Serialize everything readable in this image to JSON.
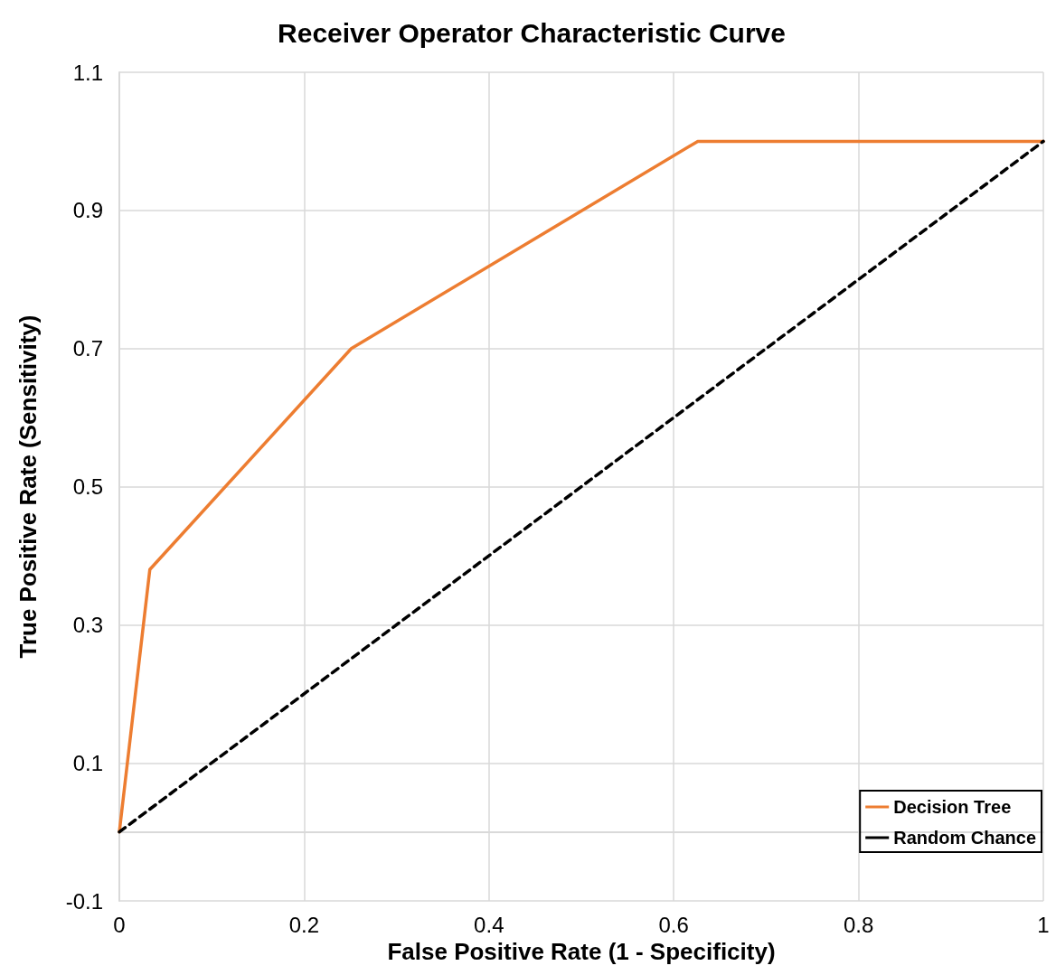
{
  "chart_data": {
    "type": "line",
    "title": "Receiver Operator Characteristic Curve",
    "xlabel": "False Positive Rate (1 - Specificity)",
    "ylabel": "True Positive Rate (Sensitivity)",
    "series": [
      {
        "name": "Decision Tree",
        "color": "#ed7d31",
        "x": [
          0,
          0.033,
          0.251,
          0.626,
          1
        ],
        "values": [
          0,
          0.38,
          0.7,
          1,
          1
        ]
      },
      {
        "name": "Random Chance",
        "color": "#000000",
        "line_style": "dashed",
        "x": [
          0,
          1
        ],
        "values": [
          0,
          1
        ]
      }
    ],
    "xlim": [
      0,
      1
    ],
    "xticks": [
      0,
      0.2,
      0.4,
      0.6,
      0.8,
      1
    ],
    "ylim": [
      -0.1,
      1.1
    ],
    "yticks": [
      -0.1,
      0.1,
      0.3,
      0.5,
      0.7,
      0.9,
      1.1
    ],
    "grid": true,
    "legend": "bottom right",
    "marker": "none",
    "line_style": "solid"
  }
}
